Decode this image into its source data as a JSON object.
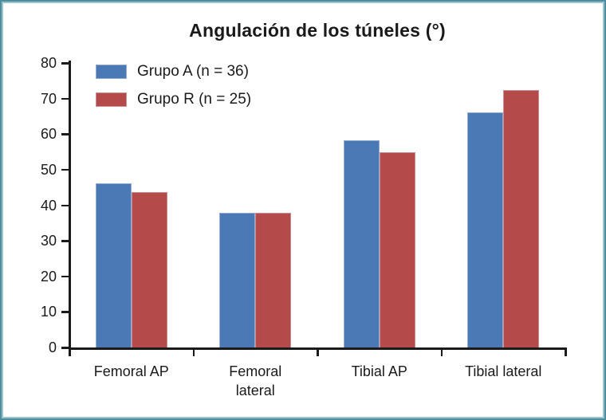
{
  "frame": {
    "border_color": "#4e8d9e",
    "inner_border_color": "#9dc4cc",
    "background": "#ffffff"
  },
  "chart_data": {
    "type": "bar",
    "title": "Angulación de los túneles (°)",
    "categories": [
      "Femoral AP",
      "Femoral lateral",
      "Tibial AP",
      "Tibial lateral"
    ],
    "series": [
      {
        "name": "Grupo A (n = 36)",
        "color": "#4a79b6",
        "edge_color": "#94abd1",
        "values": [
          46.1,
          37.9,
          58.3,
          66.2
        ]
      },
      {
        "name": "Grupo R (n = 25)",
        "color": "#b54a4a",
        "edge_color": "#c98f90",
        "values": [
          43.7,
          37.9,
          54.8,
          72.4
        ]
      }
    ],
    "ylim": [
      0,
      80
    ],
    "ytick_step": 10,
    "ytick_labels": [
      "0",
      "10",
      "20",
      "30",
      "40",
      "50",
      "60",
      "70",
      "80"
    ],
    "xlabel": "",
    "ylabel": "",
    "grid": false,
    "legend_position": "top-left-inside",
    "axis_color": "#1a1a1a",
    "text_color": "#1a1a1a"
  }
}
